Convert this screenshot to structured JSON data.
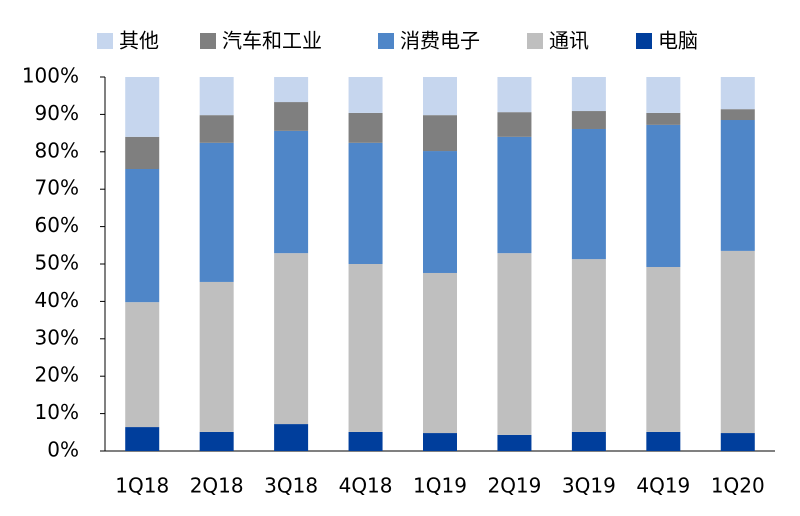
{
  "chart_data": {
    "type": "stacked-bar",
    "categories": [
      "1Q18",
      "2Q18",
      "3Q18",
      "4Q18",
      "1Q19",
      "2Q19",
      "3Q19",
      "4Q19",
      "1Q20"
    ],
    "series": [
      {
        "name": "其他",
        "color": "#c6d6ee",
        "values": [
          16.0,
          10.2,
          6.7,
          9.6,
          10.2,
          9.4,
          9.1,
          9.6,
          8.6
        ]
      },
      {
        "name": "汽车和工业",
        "color": "#7f7f7f",
        "values": [
          8.6,
          7.4,
          7.7,
          8.0,
          9.6,
          6.6,
          4.8,
          3.2,
          2.9
        ]
      },
      {
        "name": "消费电子",
        "color": "#4f86c8",
        "values": [
          35.6,
          37.2,
          32.7,
          32.4,
          32.6,
          31.1,
          34.8,
          38.0,
          35.0
        ]
      },
      {
        "name": "通讯",
        "color": "#bfbfbf",
        "values": [
          33.4,
          40.1,
          45.7,
          44.9,
          42.8,
          48.6,
          46.2,
          44.1,
          48.7
        ]
      },
      {
        "name": "电脑",
        "color": "#003e9c",
        "values": [
          6.4,
          5.1,
          7.2,
          5.1,
          4.8,
          4.3,
          5.1,
          5.1,
          4.8
        ]
      }
    ],
    "ylim": [
      0,
      100
    ],
    "yticks": [
      {
        "value": 0,
        "label": "0%"
      },
      {
        "value": 10,
        "label": "10%"
      },
      {
        "value": 20,
        "label": "20%"
      },
      {
        "value": 30,
        "label": "30%"
      },
      {
        "value": 40,
        "label": "40%"
      },
      {
        "value": 50,
        "label": "50%"
      },
      {
        "value": 60,
        "label": "60%"
      },
      {
        "value": 70,
        "label": "70%"
      },
      {
        "value": 80,
        "label": "80%"
      },
      {
        "value": 90,
        "label": "90%"
      },
      {
        "value": 100,
        "label": "100%"
      }
    ],
    "grid": false,
    "legend": "top"
  }
}
